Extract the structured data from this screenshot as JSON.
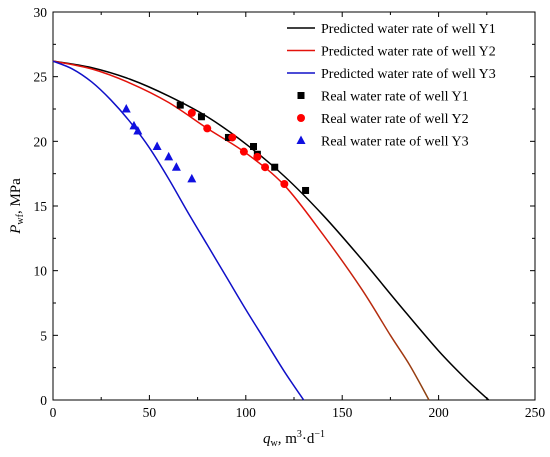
{
  "chart_data": {
    "type": "line",
    "xlabel": {
      "main": "q",
      "sub": "w",
      "unit_pre": ", m",
      "sup1": "3",
      "unit_mid": "·d",
      "sup2": "−1"
    },
    "ylabel": {
      "main": "P",
      "sub": "wf",
      "unit": ", MPa"
    },
    "xlim": [
      0,
      250
    ],
    "ylim": [
      0,
      30
    ],
    "xticks": [
      0,
      50,
      100,
      150,
      200,
      250
    ],
    "yticks": [
      0,
      5,
      10,
      15,
      20,
      25,
      30
    ],
    "legend_position": "top-right",
    "series": [
      {
        "name": "Predicted water rate of well Y1",
        "kind": "line",
        "color": "#000000",
        "points": [
          [
            0,
            26.2
          ],
          [
            20,
            25.7
          ],
          [
            40,
            24.8
          ],
          [
            60,
            23.5
          ],
          [
            80,
            21.9
          ],
          [
            100,
            19.8
          ],
          [
            120,
            17.3
          ],
          [
            140,
            14.3
          ],
          [
            160,
            10.9
          ],
          [
            180,
            7.3
          ],
          [
            200,
            3.8
          ],
          [
            215,
            1.5
          ],
          [
            226,
            0
          ]
        ]
      },
      {
        "name": "Predicted water rate of well Y2",
        "kind": "line",
        "color": "#e3120b",
        "color_end": "#8b4513",
        "points": [
          [
            0,
            26.2
          ],
          [
            20,
            25.6
          ],
          [
            40,
            24.5
          ],
          [
            60,
            23.0
          ],
          [
            80,
            21.0
          ],
          [
            100,
            19.1
          ],
          [
            120,
            16.6
          ],
          [
            140,
            12.8
          ],
          [
            160,
            8.6
          ],
          [
            175,
            5.0
          ],
          [
            185,
            2.7
          ],
          [
            195,
            0
          ]
        ]
      },
      {
        "name": "Predicted water rate of well Y3",
        "kind": "line",
        "color": "#1010c8",
        "points": [
          [
            0,
            26.2
          ],
          [
            10,
            25.6
          ],
          [
            20,
            24.6
          ],
          [
            30,
            23.2
          ],
          [
            40,
            21.5
          ],
          [
            50,
            19.5
          ],
          [
            60,
            17.1
          ],
          [
            70,
            14.5
          ],
          [
            80,
            12.0
          ],
          [
            90,
            9.5
          ],
          [
            100,
            7.0
          ],
          [
            110,
            4.6
          ],
          [
            120,
            2.2
          ],
          [
            130,
            0
          ]
        ]
      },
      {
        "name": "Real water rate of well Y1",
        "kind": "scatter",
        "marker": "square",
        "color": "#000000",
        "points": [
          [
            66,
            22.8
          ],
          [
            77,
            21.9
          ],
          [
            91,
            20.3
          ],
          [
            104,
            19.6
          ],
          [
            106,
            19.0
          ],
          [
            115,
            18.0
          ],
          [
            131,
            16.2
          ]
        ]
      },
      {
        "name": "Real water rate of well Y2",
        "kind": "scatter",
        "marker": "circle",
        "color": "#ff0000",
        "points": [
          [
            72,
            22.2
          ],
          [
            80,
            21.0
          ],
          [
            93,
            20.3
          ],
          [
            99,
            19.2
          ],
          [
            106,
            18.8
          ],
          [
            110,
            18.0
          ],
          [
            120,
            16.7
          ]
        ]
      },
      {
        "name": "Real water rate of well Y3",
        "kind": "scatter",
        "marker": "triangle",
        "color": "#1010e0",
        "points": [
          [
            38,
            22.5
          ],
          [
            42,
            21.2
          ],
          [
            44,
            20.8
          ],
          [
            54,
            19.6
          ],
          [
            60,
            18.8
          ],
          [
            64,
            18.0
          ],
          [
            72,
            17.1
          ]
        ]
      }
    ]
  }
}
